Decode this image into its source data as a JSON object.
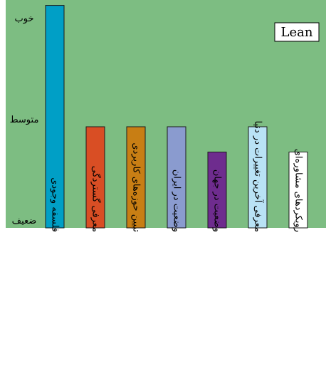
{
  "chart_data": {
    "type": "bar",
    "legend": "Lean",
    "legend_position": "top-right",
    "background_color": "#7dbd82",
    "ylim": [
      0,
      2.3
    ],
    "y_ticks": [
      {
        "value": 0,
        "label": "ضعیف"
      },
      {
        "value": 1,
        "label": "متوسط"
      },
      {
        "value": 2,
        "label": "خوب"
      }
    ],
    "categories": [
      "فلسفه وجودی",
      "معرفی گستردگی",
      "تبیین حوزه‌های کاربردی",
      "وضعیت در ایران",
      "وضعیت در جهان",
      "معرفی آخرین تغییرات در دنیا",
      "رویکردهای مشاوره‌ای"
    ],
    "values": [
      2.2,
      1.0,
      1.0,
      1.0,
      0.75,
      1.0,
      0.75
    ],
    "bar_colors": [
      "#009fc6",
      "#d94e24",
      "#c87e14",
      "#8a9bcf",
      "#6e2c8e",
      "#b9e2f5",
      "#ffffff"
    ]
  }
}
